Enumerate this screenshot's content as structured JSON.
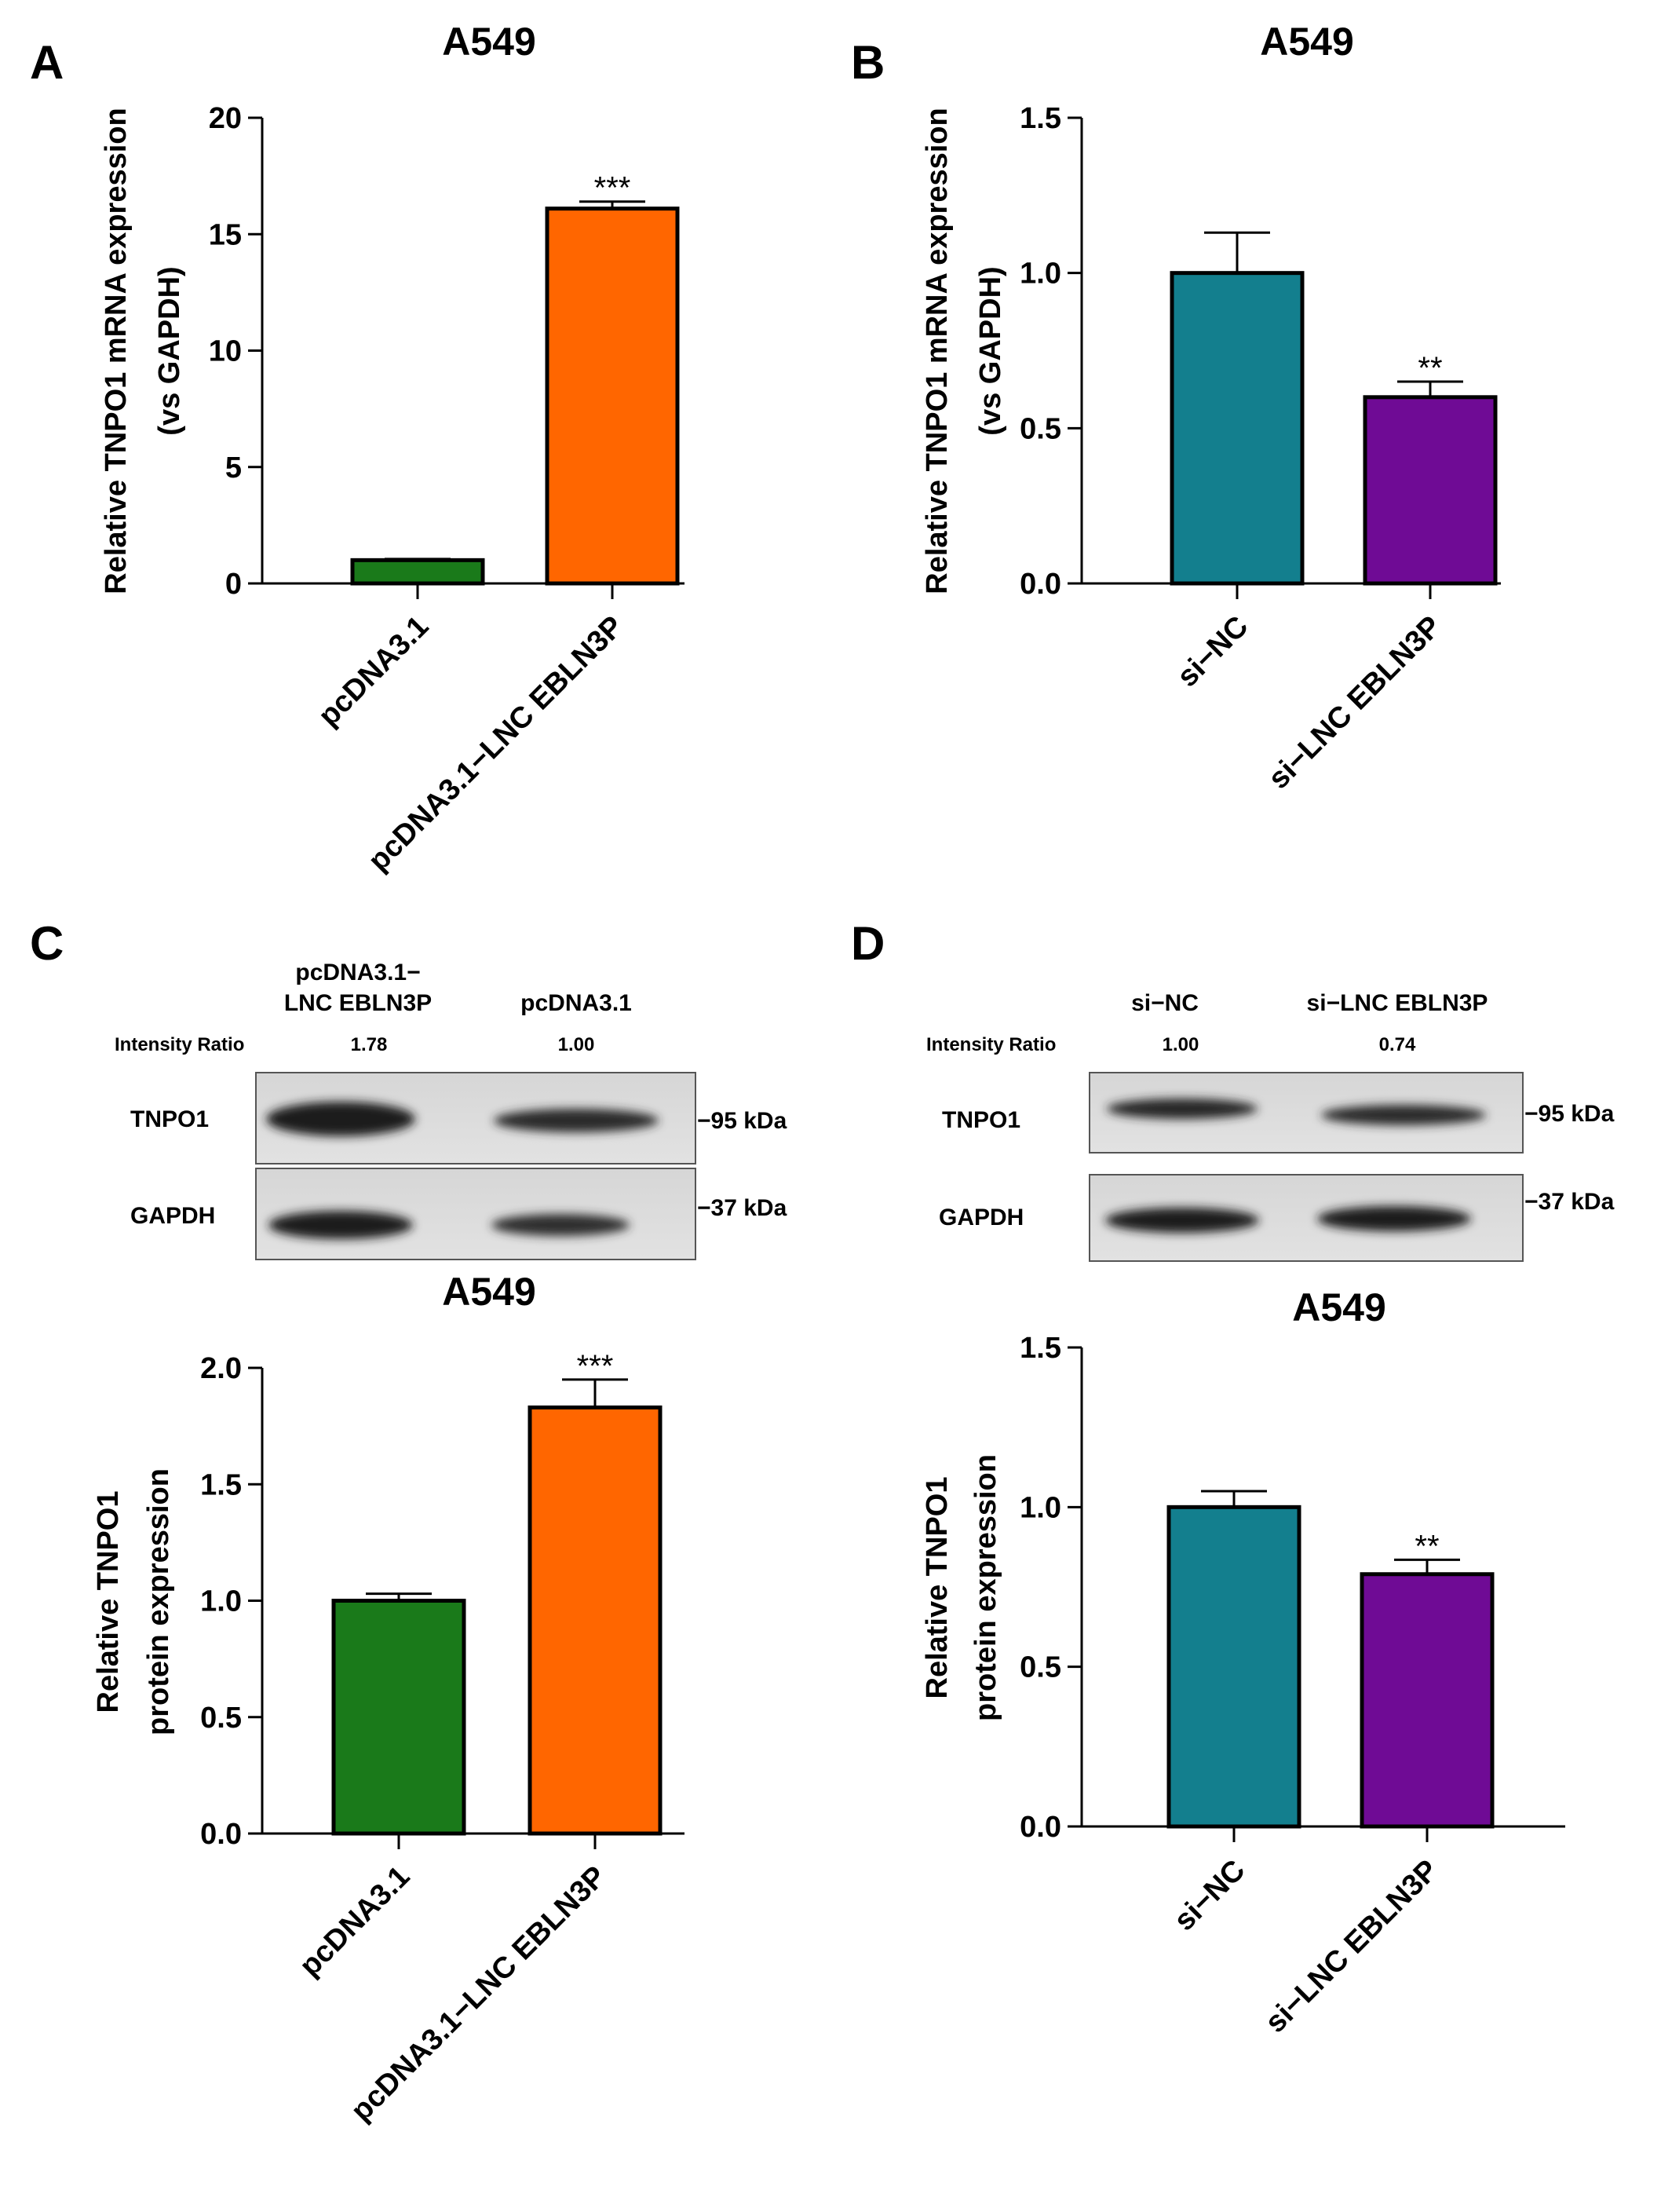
{
  "panels": {
    "A": {
      "letter": "A"
    },
    "B": {
      "letter": "B"
    },
    "C": {
      "letter": "C"
    },
    "D": {
      "letter": "D"
    }
  },
  "blots": {
    "C": {
      "lanes": [
        {
          "line1": "pcDNA3.1−",
          "line2": "LNC EBLN3P",
          "ratio": "1.78"
        },
        {
          "line1": "pcDNA3.1",
          "line2": "",
          "ratio": "1.00"
        }
      ],
      "ratio_label": "Intensity Ratio",
      "proteins": [
        {
          "name": "TNPO1",
          "marker": "−95 kDa"
        },
        {
          "name": "GAPDH",
          "marker": "−37 kDa"
        }
      ]
    },
    "D": {
      "lanes": [
        {
          "line1": "si−NC",
          "line2": "",
          "ratio": "1.00"
        },
        {
          "line1": "si−LNC EBLN3P",
          "line2": "",
          "ratio": "0.74"
        }
      ],
      "ratio_label": "Intensity Ratio",
      "proteins": [
        {
          "name": "TNPO1",
          "marker": "−95 kDa"
        },
        {
          "name": "GAPDH",
          "marker": "−37 kDa"
        }
      ]
    }
  },
  "chart_data": [
    {
      "id": "A",
      "type": "bar",
      "title": "A549",
      "ylabel_lines": [
        "Relative TNPO1 mRNA expression",
        "(vs GAPDH)"
      ],
      "categories": [
        "pcDNA3.1",
        "pcDNA3.1−LNC EBLN3P"
      ],
      "values": [
        1.0,
        16.1
      ],
      "errors": [
        0.05,
        0.3
      ],
      "significance": [
        "",
        "***"
      ],
      "colors": [
        "#1a7a1a",
        "#ff6600"
      ],
      "ylim": [
        0,
        20
      ],
      "yticks": [
        0,
        5,
        10,
        15,
        20
      ],
      "ytick_labels": [
        "0",
        "5",
        "10",
        "15",
        "20"
      ]
    },
    {
      "id": "B",
      "type": "bar",
      "title": "A549",
      "ylabel_lines": [
        "Relative TNPO1 mRNA expression",
        "(vs GAPDH)"
      ],
      "categories": [
        "si−NC",
        "si−LNC EBLN3P"
      ],
      "values": [
        1.0,
        0.6
      ],
      "errors": [
        0.13,
        0.05
      ],
      "significance": [
        "",
        "**"
      ],
      "colors": [
        "#137f8e",
        "#6f0b95"
      ],
      "ylim": [
        0,
        1.5
      ],
      "yticks": [
        0,
        0.5,
        1.0,
        1.5
      ],
      "ytick_labels": [
        "0.0",
        "0.5",
        "1.0",
        "1.5"
      ]
    },
    {
      "id": "C",
      "type": "bar",
      "title": "A549",
      "ylabel_lines": [
        "Relative TNPO1",
        "protein expression"
      ],
      "categories": [
        "pcDNA3.1",
        "pcDNA3.1−LNC EBLN3P"
      ],
      "values": [
        1.0,
        1.83
      ],
      "errors": [
        0.03,
        0.12
      ],
      "significance": [
        "",
        "***"
      ],
      "colors": [
        "#1a7a1a",
        "#ff6600"
      ],
      "ylim": [
        0,
        2.0
      ],
      "yticks": [
        0,
        0.5,
        1.0,
        1.5,
        2.0
      ],
      "ytick_labels": [
        "0.0",
        "0.5",
        "1.0",
        "1.5",
        "2.0"
      ]
    },
    {
      "id": "D",
      "type": "bar",
      "title": "A549",
      "ylabel_lines": [
        "Relative TNPO1",
        "protein expression"
      ],
      "categories": [
        "si−NC",
        "si−LNC EBLN3P"
      ],
      "values": [
        1.0,
        0.79
      ],
      "errors": [
        0.05,
        0.045
      ],
      "significance": [
        "",
        "**"
      ],
      "colors": [
        "#137f8e",
        "#6f0b95"
      ],
      "ylim": [
        0,
        1.5
      ],
      "yticks": [
        0,
        0.5,
        1.0,
        1.5
      ],
      "ytick_labels": [
        "0.0",
        "0.5",
        "1.0",
        "1.5"
      ]
    }
  ]
}
